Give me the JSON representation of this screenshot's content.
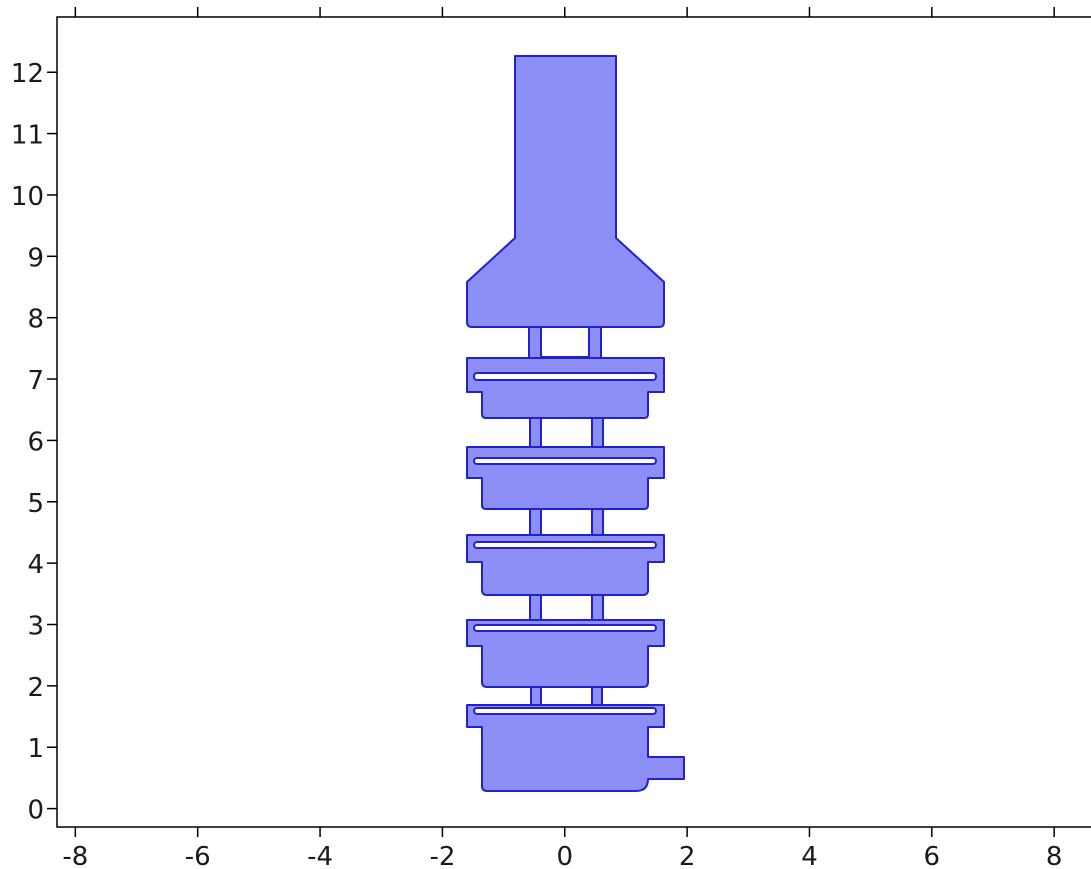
{
  "plot": {
    "x_axis": {
      "min": -8.3,
      "max": 8.7,
      "ticks": [
        -8,
        -6,
        -4,
        -2,
        0,
        2,
        4,
        6,
        8
      ],
      "tick_labels": [
        "-8",
        "-6",
        "-4",
        "-2",
        "0",
        "2",
        "4",
        "6",
        "8"
      ]
    },
    "y_axis": {
      "min": -0.3,
      "max": 12.9,
      "ticks": [
        0,
        1,
        2,
        3,
        4,
        5,
        6,
        7,
        8,
        9,
        10,
        11,
        12
      ],
      "tick_labels": [
        "0",
        "1",
        "2",
        "3",
        "4",
        "5",
        "6",
        "7",
        "8",
        "9",
        "10",
        "11",
        "12"
      ]
    },
    "fill_color": "#8c8ef5",
    "stroke_color": "#2222cc",
    "frame_color": "#000000"
  }
}
